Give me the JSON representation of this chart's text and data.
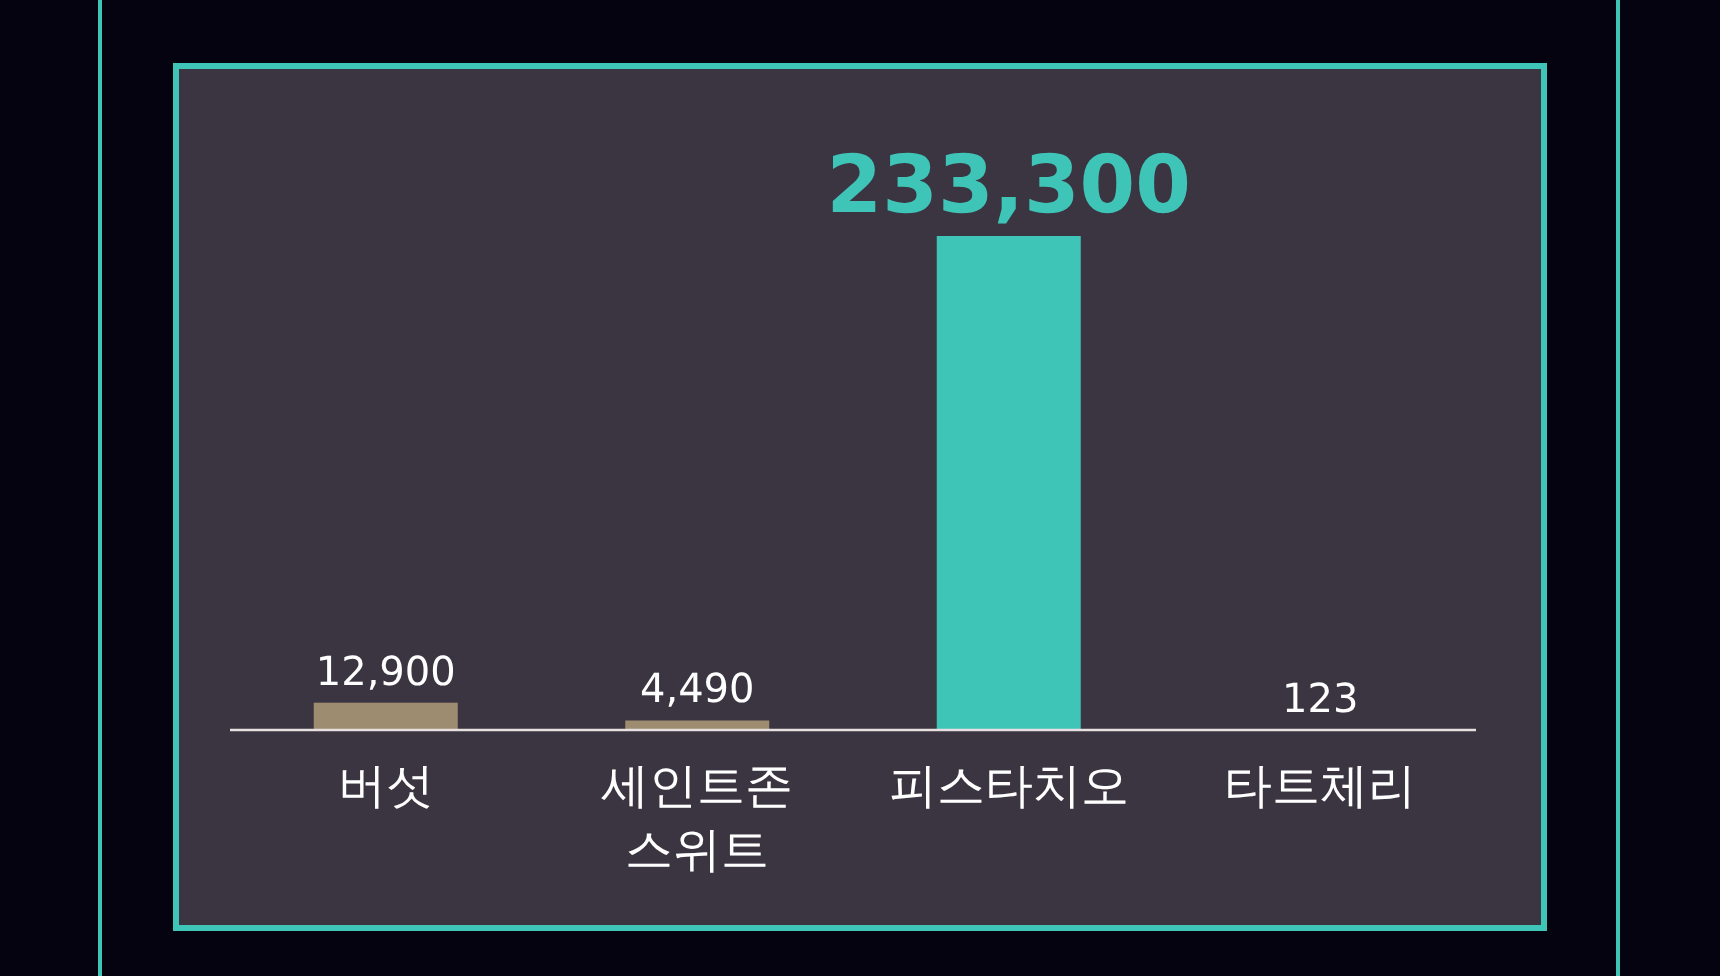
{
  "chart_data": {
    "type": "bar",
    "categories": [
      "버섯",
      "세인트존 스위트",
      "피스타치오",
      "타트체리"
    ],
    "values": [
      12900,
      4490,
      233300,
      123
    ],
    "colors": [
      "#9d8c70",
      "#9d8c70",
      "#3fc4b8",
      "#9d8c70"
    ],
    "value_labels": [
      "12,900",
      "4,490",
      "233,300",
      "123"
    ],
    "ylim": [
      0,
      233300
    ],
    "tick_labels": "x"
  }
}
